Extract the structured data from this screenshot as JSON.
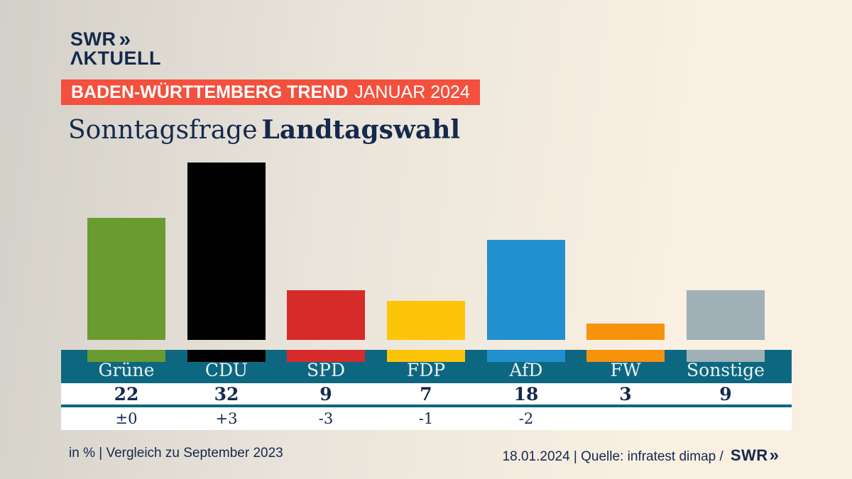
{
  "logo": {
    "brand": "SWR",
    "chevrons": "»",
    "sub": "ΛKTUELL"
  },
  "banner": {
    "bold": "BADEN-WÜRTTEMBERG TREND",
    "regular": "JANUAR 2024"
  },
  "title": {
    "regular": "Sonntagsfrage",
    "bold": "Landtagswahl"
  },
  "chart_data": {
    "type": "bar",
    "title": "Sonntagsfrage Landtagswahl",
    "subtitle": "BADEN-WÜRTTEMBERG TREND JANUAR 2024",
    "unit": "in %",
    "comparison_note": "Vergleich zu September 2023",
    "categories": [
      "Grüne",
      "CDU",
      "SPD",
      "FDP",
      "AfD",
      "FW",
      "Sonstige"
    ],
    "values": [
      22,
      32,
      9,
      7,
      18,
      3,
      9
    ],
    "changes": [
      "±0",
      "+3",
      "-3",
      "-1",
      "-2",
      "",
      ""
    ],
    "colors": [
      "#6a9b31",
      "#020202",
      "#d62b2b",
      "#fdc50a",
      "#2190cf",
      "#f7920c",
      "#9fb1b6"
    ],
    "ylim": [
      0,
      32
    ],
    "grid": false,
    "legend": false
  },
  "footer": {
    "left": "in % | Vergleich zu September 2023",
    "right": "18.01.2024 | Quelle: infratest dimap /",
    "brand": "SWR",
    "chevrons": "»"
  },
  "colors": {
    "navy": "#14294d",
    "banner_red": "#f3503d",
    "teal": "#0e6780",
    "row_white": "#ffffff",
    "label_light": "#eaf3f5",
    "bg_left": "#d3d0c9",
    "bg_mid": "#e9e4da",
    "bg_right": "#f9f0e2"
  }
}
